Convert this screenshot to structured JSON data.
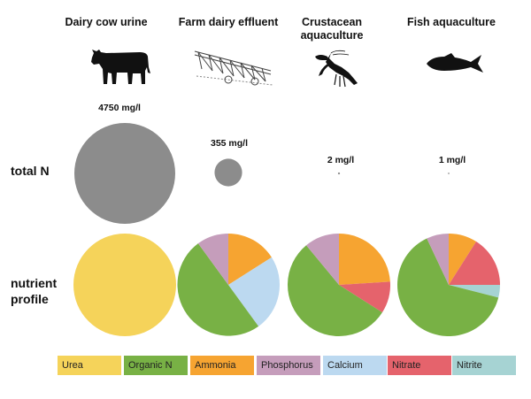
{
  "columns": [
    {
      "title": "Dairy cow urine",
      "icon": "cow-icon"
    },
    {
      "title": "Farm dairy effluent",
      "icon": "irrigator-icon"
    },
    {
      "title": "Crustacean\naquaculture",
      "icon": "crayfish-icon"
    },
    {
      "title": "Fish aquaculture",
      "icon": "fish-icon"
    }
  ],
  "row_labels": {
    "total_n": "total N",
    "nutrient_profile": "nutrient\nprofile"
  },
  "colors": {
    "total_n_circle": "#8c8c8c"
  },
  "chart_data": [
    {
      "type": "bubble",
      "title": "total N",
      "categories": [
        "Dairy cow urine",
        "Farm dairy effluent",
        "Crustacean aquaculture",
        "Fish aquaculture"
      ],
      "values": [
        4750,
        355,
        2,
        1
      ],
      "unit": "mg/l",
      "labels": [
        "4750 mg/l",
        "355 mg/l",
        "2 mg/l",
        "1 mg/l"
      ]
    },
    {
      "type": "pie",
      "title": "nutrient profile",
      "categories": [
        "Dairy cow urine",
        "Farm dairy effluent",
        "Crustacean aquaculture",
        "Fish aquaculture"
      ],
      "series": [
        {
          "name": "Urea",
          "color": "#f5d35a",
          "values": [
            100,
            0,
            0,
            0
          ]
        },
        {
          "name": "Organic N",
          "color": "#78b145",
          "values": [
            0,
            50,
            55,
            64
          ]
        },
        {
          "name": "Ammonia",
          "color": "#f6a431",
          "values": [
            0,
            16,
            24,
            9
          ]
        },
        {
          "name": "Phosphorus",
          "color": "#c59dbb",
          "values": [
            0,
            10,
            11,
            7
          ]
        },
        {
          "name": "Calcium",
          "color": "#bcd9f0",
          "values": [
            0,
            24,
            0,
            0
          ]
        },
        {
          "name": "Nitrate",
          "color": "#e5636c",
          "values": [
            0,
            0,
            10,
            16
          ]
        },
        {
          "name": "Nitrite",
          "color": "#a6d3d3",
          "values": [
            0,
            0,
            0,
            4
          ]
        }
      ]
    }
  ]
}
